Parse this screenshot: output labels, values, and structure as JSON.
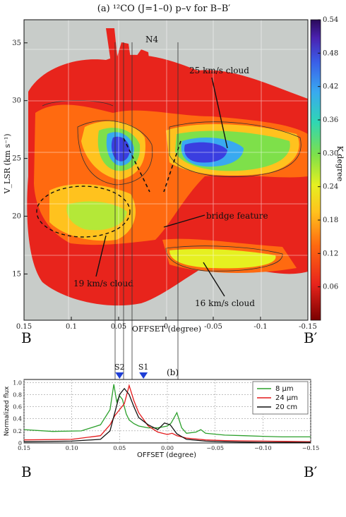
{
  "chart_data": [
    {
      "panel": "(a)",
      "type": "heatmap",
      "title": "(a) ¹²CO (J=1–0) p–v for B–B′",
      "xlabel": "OFFSET (degree)",
      "ylabel": "V_LSR (km s⁻¹)",
      "xlim": [
        0.15,
        -0.15
      ],
      "ylim": [
        11,
        37
      ],
      "x_ticks": [
        "0.15",
        "0.1",
        "0.05",
        "0",
        "-0.05",
        "-0.1",
        "-0.15"
      ],
      "y_ticks": [
        "15",
        "20",
        "25",
        "30",
        "35"
      ],
      "colorbar": {
        "label": "K degree",
        "range": [
          0,
          0.54
        ],
        "ticks": [
          "0.06",
          "0.12",
          "0.18",
          "0.24",
          "0.30",
          "0.36",
          "0.42",
          "0.48",
          "0.54"
        ]
      },
      "annotations": [
        "N4",
        "25 km/s cloud",
        "bridge feature",
        "19 km/s cloud",
        "16 km/s cloud"
      ],
      "endpoints": [
        "B",
        "B′"
      ]
    },
    {
      "panel": "(b)",
      "type": "line",
      "title": "(b)",
      "xlabel": "OFFSET (degree)",
      "ylabel": "Normalized flux",
      "xlim": [
        0.15,
        -0.15
      ],
      "ylim": [
        0,
        1.05
      ],
      "x_ticks": [
        "0.15",
        "0.10",
        "0.05",
        "0.00",
        "−0.05",
        "−0.10",
        "−0.15"
      ],
      "y_ticks": [
        "0",
        "0.2",
        "0.4",
        "0.6",
        "0.8",
        "1.0"
      ],
      "markers": [
        {
          "name": "S2",
          "x": 0.05
        },
        {
          "name": "S1",
          "x": 0.025
        }
      ],
      "legend_position": "top-right",
      "series": [
        {
          "name": "8 μm",
          "color": "#2ca02c",
          "x": [
            0.15,
            0.12,
            0.09,
            0.07,
            0.06,
            0.056,
            0.053,
            0.05,
            0.047,
            0.043,
            0.04,
            0.035,
            0.03,
            0.02,
            0.01,
            0.0,
            -0.004,
            -0.01,
            -0.015,
            -0.02,
            -0.03,
            -0.035,
            -0.04,
            -0.06,
            -0.08,
            -0.1,
            -0.12,
            -0.15
          ],
          "values": [
            0.22,
            0.19,
            0.2,
            0.3,
            0.55,
            0.97,
            0.68,
            0.78,
            0.72,
            0.48,
            0.38,
            0.32,
            0.28,
            0.25,
            0.25,
            0.28,
            0.33,
            0.5,
            0.25,
            0.16,
            0.18,
            0.22,
            0.16,
            0.13,
            0.12,
            0.11,
            0.1,
            0.1
          ]
        },
        {
          "name": "24 μm",
          "color": "#e41a1c",
          "x": [
            0.15,
            0.1,
            0.07,
            0.06,
            0.055,
            0.05,
            0.045,
            0.04,
            0.035,
            0.03,
            0.02,
            0.01,
            0.0,
            -0.005,
            -0.01,
            -0.02,
            -0.04,
            -0.06,
            -0.1,
            -0.15
          ],
          "values": [
            0.05,
            0.06,
            0.12,
            0.3,
            0.45,
            0.55,
            0.65,
            0.95,
            0.7,
            0.5,
            0.28,
            0.18,
            0.14,
            0.16,
            0.12,
            0.08,
            0.05,
            0.04,
            0.03,
            0.02
          ]
        },
        {
          "name": "20 cm",
          "color": "#111111",
          "x": [
            0.15,
            0.1,
            0.07,
            0.06,
            0.055,
            0.05,
            0.045,
            0.04,
            0.035,
            0.03,
            0.02,
            0.01,
            0.003,
            -0.003,
            -0.01,
            -0.02,
            -0.04,
            -0.06,
            -0.1,
            -0.15
          ],
          "values": [
            0.02,
            0.03,
            0.06,
            0.2,
            0.5,
            0.8,
            0.9,
            0.8,
            0.6,
            0.42,
            0.3,
            0.22,
            0.33,
            0.3,
            0.15,
            0.06,
            0.03,
            0.02,
            0.01,
            0.01
          ]
        }
      ],
      "endpoints": [
        "B",
        "B′"
      ]
    }
  ]
}
